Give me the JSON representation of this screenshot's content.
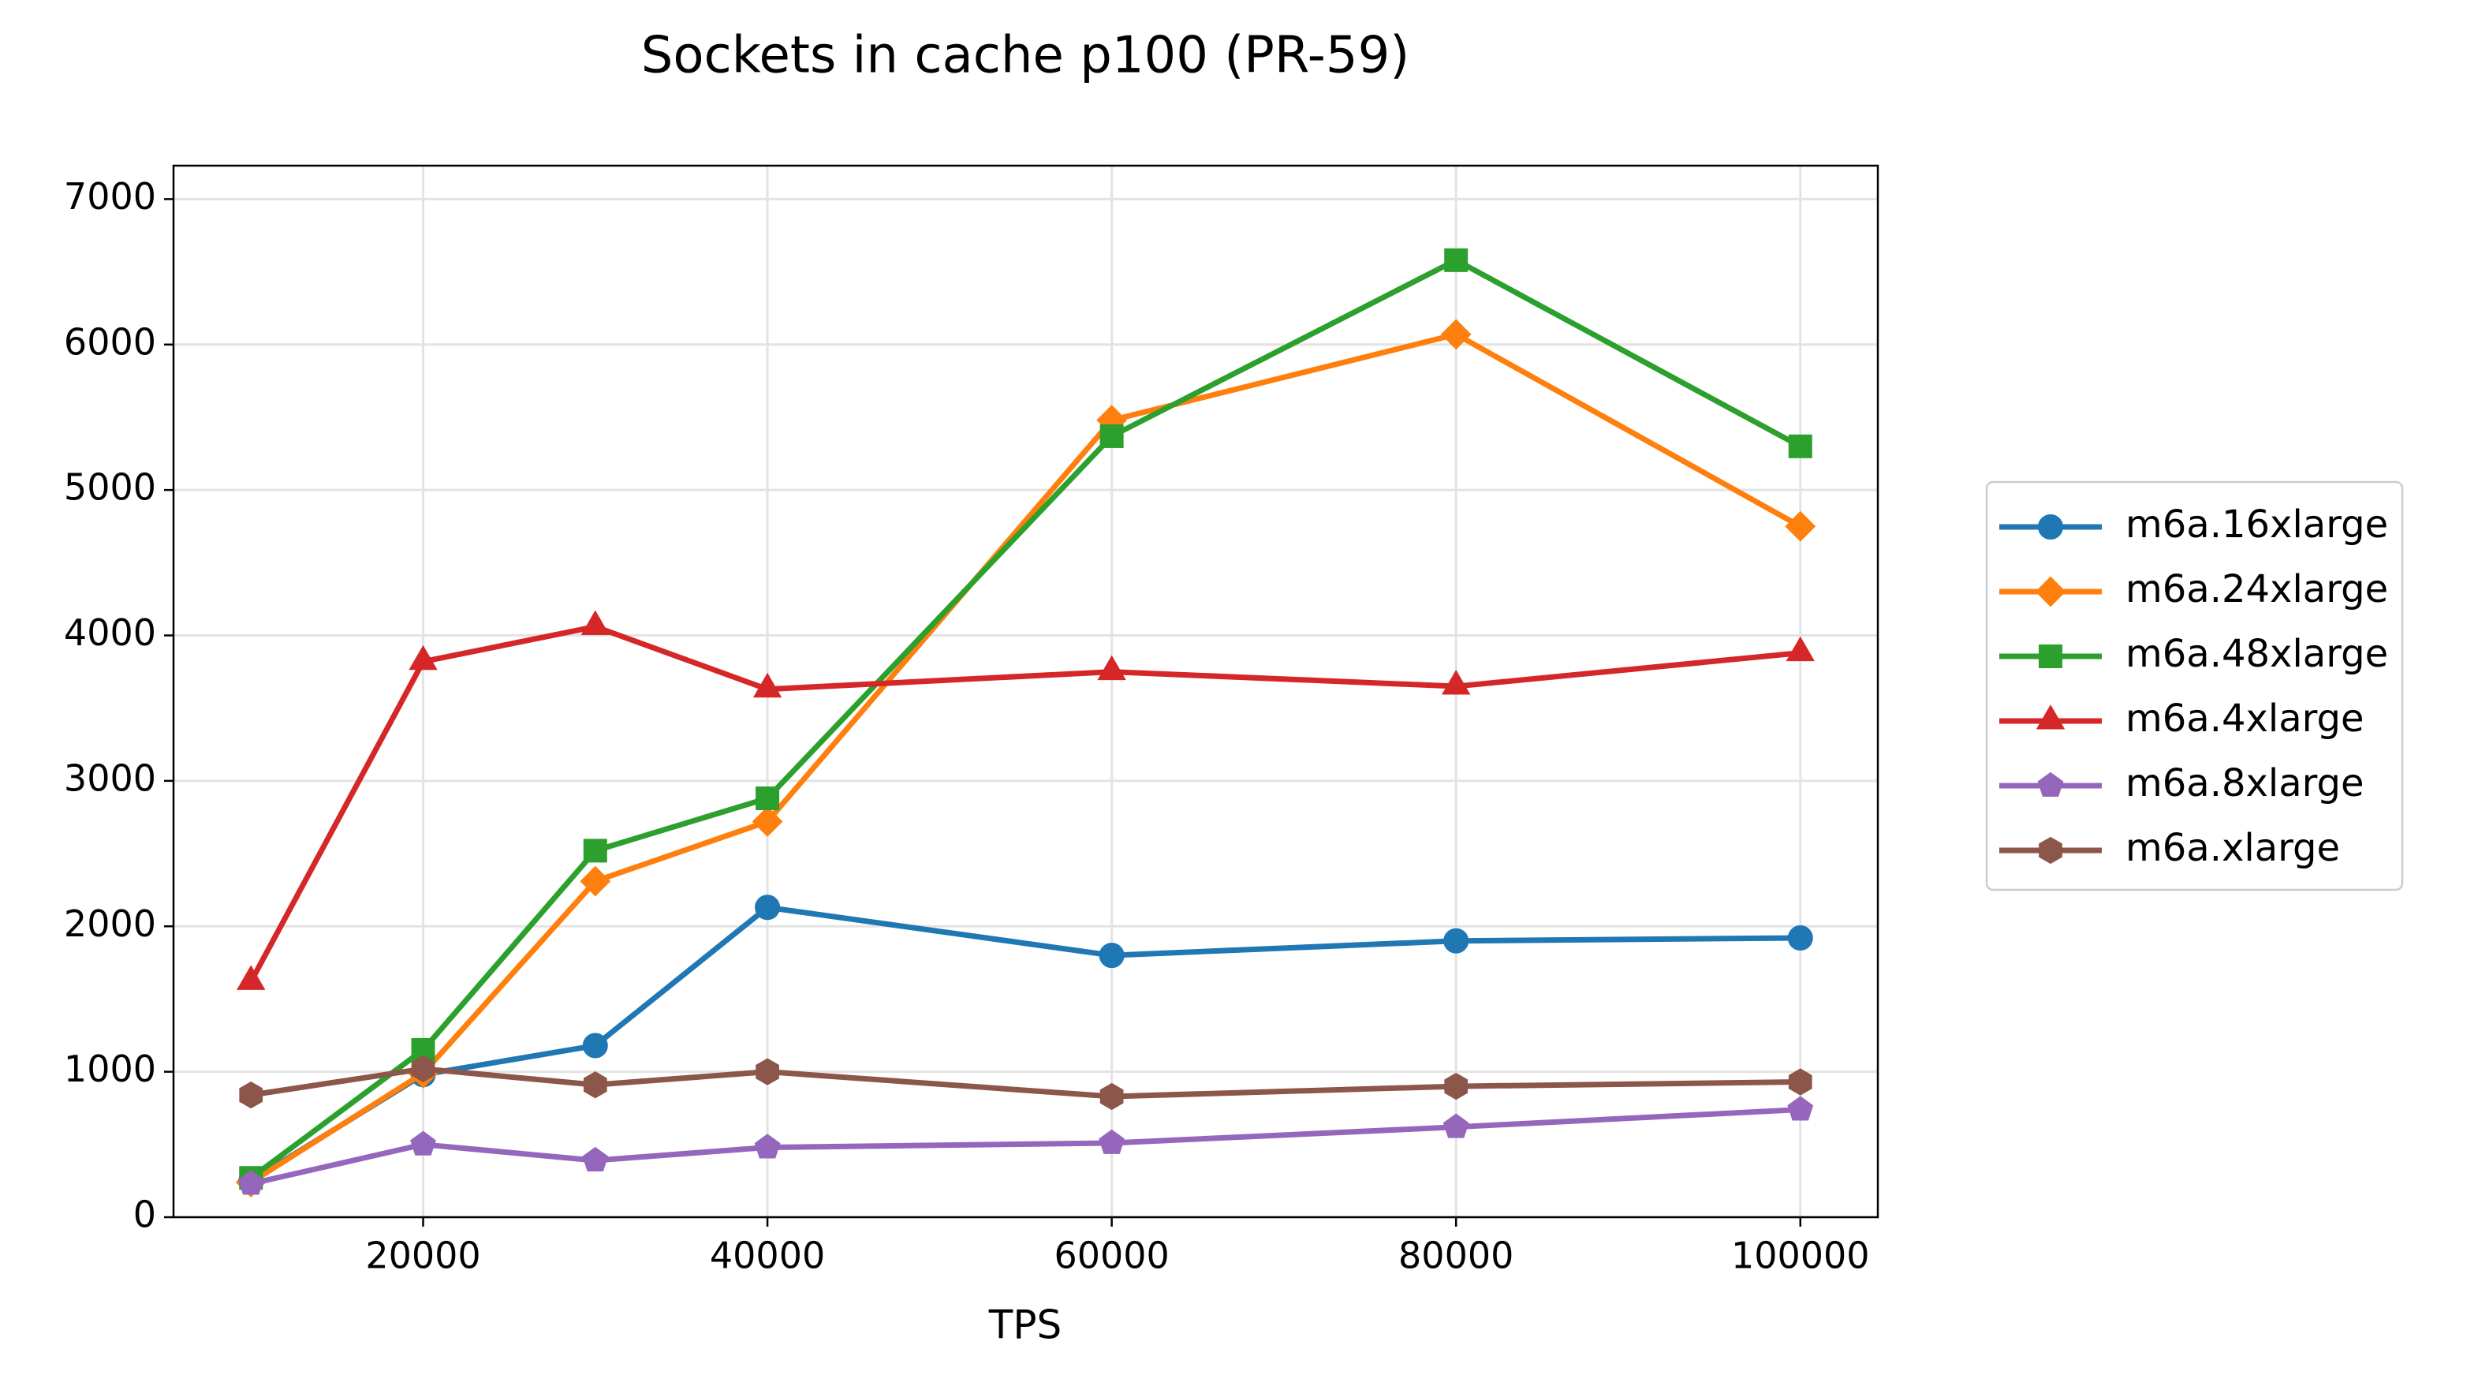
{
  "chart_data": {
    "type": "line",
    "title": "Sockets in cache p100 (PR-59)",
    "x_label": "TPS",
    "x": [
      10000,
      20000,
      30000,
      40000,
      60000,
      80000,
      100000
    ],
    "xlim": [
      5500,
      104500
    ],
    "xticks": [
      20000,
      40000,
      60000,
      80000,
      100000
    ],
    "ylim": [
      0,
      7230
    ],
    "yticks": [
      0,
      1000,
      2000,
      3000,
      4000,
      5000,
      6000,
      7000
    ],
    "grid": true,
    "legend": "outside right",
    "series": [
      {
        "name": "m6a.16xlarge",
        "color": "#1f77b4",
        "marker": "o",
        "values": [
          250,
          980,
          1180,
          2130,
          1800,
          1900,
          1920
        ]
      },
      {
        "name": "m6a.24xlarge",
        "color": "#ff7f0e",
        "marker": "D",
        "values": [
          240,
          990,
          2310,
          2720,
          5480,
          6070,
          4750
        ]
      },
      {
        "name": "m6a.48xlarge",
        "color": "#2ca02c",
        "marker": "s",
        "values": [
          270,
          1150,
          2520,
          2880,
          5370,
          6580,
          5300
        ]
      },
      {
        "name": "m6a.4xlarge",
        "color": "#d62728",
        "marker": "^",
        "values": [
          1620,
          3820,
          4060,
          3630,
          3750,
          3650,
          3880
        ]
      },
      {
        "name": "m6a.8xlarge",
        "color": "#9467bd",
        "marker": "p",
        "values": [
          230,
          500,
          390,
          480,
          510,
          620,
          740
        ]
      },
      {
        "name": "m6a.xlarge",
        "color": "#8c564b",
        "marker": "h",
        "values": [
          840,
          1020,
          910,
          1000,
          830,
          900,
          930
        ]
      }
    ]
  }
}
